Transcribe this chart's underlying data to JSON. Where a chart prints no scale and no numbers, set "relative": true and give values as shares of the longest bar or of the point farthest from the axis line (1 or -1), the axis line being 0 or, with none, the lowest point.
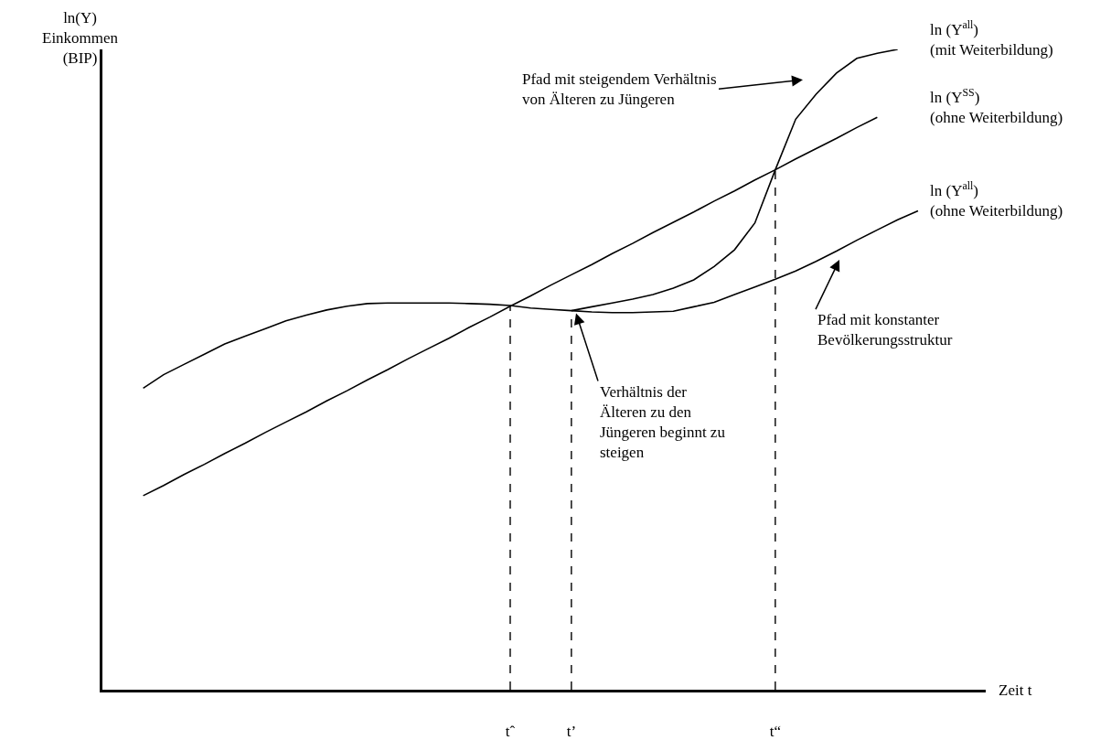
{
  "chart_data": {
    "type": "line",
    "relative": true,
    "xlabel": "Zeit t",
    "ylabel": "ln(Y)\nEinkommen\n(BIP)",
    "categories": [
      null,
      null,
      null,
      null,
      null,
      null,
      null,
      null,
      null,
      null,
      null,
      null,
      null,
      null,
      null,
      null,
      null,
      null,
      null,
      null,
      "tˆ",
      null,
      null,
      "t’",
      null,
      null,
      null,
      null,
      null,
      null,
      null,
      null,
      null,
      "t“",
      null,
      null,
      null,
      null,
      null,
      null,
      null,
      null,
      null,
      null
    ],
    "legend": false,
    "marker": "none",
    "line_style": "solid",
    "series": [
      {
        "name": "ln (Y$^{all}$)\n(mit Weiterbildung)",
        "color": "#000000",
        "values": [
          null,
          null,
          null,
          null,
          null,
          null,
          null,
          null,
          null,
          null,
          null,
          null,
          null,
          null,
          null,
          null,
          null,
          null,
          null,
          null,
          null,
          null,
          null,
          0.592,
          0.598,
          0.604,
          0.61,
          0.617,
          0.627,
          0.64,
          0.661,
          0.687,
          0.729,
          0.812,
          0.891,
          0.93,
          0.963,
          0.986,
          0.994,
          1.0,
          null,
          null,
          null,
          null
        ]
      },
      {
        "name": "ln (Y$^{SS}$)\n(ohne Weiterbildung)",
        "color": "#000000",
        "values": [
          null,
          null,
          0.303,
          0.319,
          0.336,
          0.352,
          0.369,
          0.385,
          0.402,
          0.418,
          0.434,
          0.451,
          0.467,
          0.484,
          0.5,
          0.517,
          0.533,
          0.549,
          0.566,
          0.582,
          0.599,
          0.615,
          0.632,
          0.648,
          0.664,
          0.681,
          0.697,
          0.714,
          0.73,
          0.746,
          0.763,
          0.779,
          0.796,
          0.812,
          0.829,
          0.845,
          0.861,
          0.878,
          0.894,
          null,
          null,
          null,
          null,
          null
        ]
      },
      {
        "name": "ln (Y$^{all}$)\n(ohne Weiterbildung)",
        "color": "#000000",
        "values": [
          null,
          null,
          0.471,
          0.492,
          0.508,
          0.524,
          0.54,
          0.552,
          0.564,
          0.576,
          0.585,
          0.593,
          0.599,
          0.603,
          0.604,
          0.604,
          0.604,
          0.604,
          0.603,
          0.602,
          0.6,
          0.596,
          0.594,
          0.592,
          0.59,
          0.589,
          0.589,
          0.59,
          0.591,
          0.598,
          0.605,
          0.617,
          0.629,
          0.641,
          0.654,
          0.669,
          0.685,
          0.702,
          0.718,
          0.734,
          0.748,
          null,
          null,
          null
        ]
      }
    ],
    "ref_lines": [
      {
        "axis": "x",
        "value": "tˆ",
        "color": "#000000",
        "line_style": "dashed"
      },
      {
        "axis": "x",
        "value": "t’",
        "color": "#000000",
        "line_style": "dashed"
      },
      {
        "axis": "x",
        "value": "t“",
        "color": "#000000",
        "line_style": "dashed"
      }
    ],
    "annotations": [
      "Pfad mit steigendem Verhältnis\nvon Älteren zu Jüngeren",
      "Verhältnis der\nÄlteren zu den\nJüngeren beginnt zu\nsteigen",
      "Pfad mit konstanter\nBevölkerungsstruktur"
    ]
  }
}
